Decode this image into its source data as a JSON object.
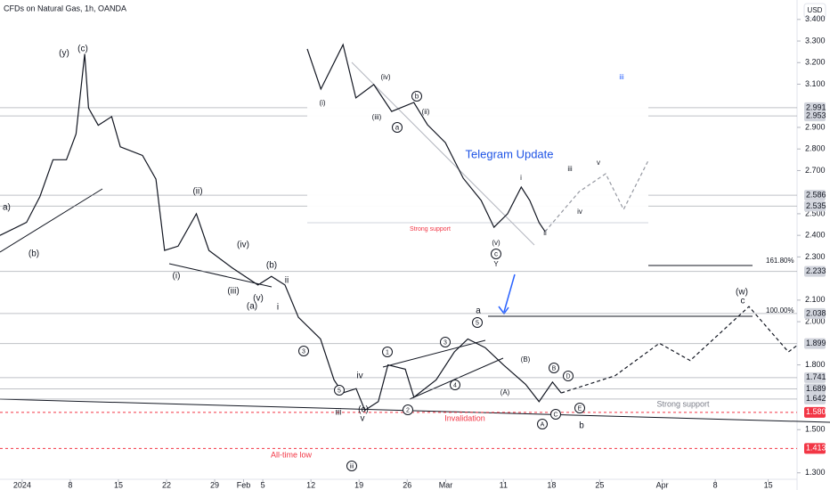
{
  "chart_data": [
    {
      "type": "line",
      "title": "CFDs on Natural Gas, 1h, OANDA",
      "currency": "USD",
      "xlim": [
        -2.3,
        80.5
      ],
      "ylim": [
        1.27,
        3.49
      ],
      "xticks": [
        {
          "value": 0,
          "label": "2024"
        },
        {
          "value": 5,
          "label": "8"
        },
        {
          "value": 10,
          "label": "15"
        },
        {
          "value": 15,
          "label": "22"
        },
        {
          "value": 20,
          "label": "29"
        },
        {
          "value": 23,
          "label": "Feb"
        },
        {
          "value": 25,
          "label": "5"
        },
        {
          "value": 30,
          "label": "12"
        },
        {
          "value": 35,
          "label": "19"
        },
        {
          "value": 40,
          "label": "26"
        },
        {
          "value": 44,
          "label": "Mar"
        },
        {
          "value": 50,
          "label": "11"
        },
        {
          "value": 55,
          "label": "18"
        },
        {
          "value": 60,
          "label": "25"
        },
        {
          "value": 66.5,
          "label": "Apr"
        },
        {
          "value": 72,
          "label": "8"
        },
        {
          "value": 77.5,
          "label": "15"
        }
      ],
      "yticks": [
        {
          "value": 3.4,
          "label": "3.400"
        },
        {
          "value": 3.3,
          "label": "3.300"
        },
        {
          "value": 3.2,
          "label": "3.200"
        },
        {
          "value": 3.1,
          "label": "3.100"
        },
        {
          "value": 2.9,
          "label": "2.900"
        },
        {
          "value": 2.8,
          "label": "2.800"
        },
        {
          "value": 2.7,
          "label": "2.700"
        },
        {
          "value": 2.5,
          "label": "2.500"
        },
        {
          "value": 2.4,
          "label": "2.400"
        },
        {
          "value": 2.3,
          "label": "2.300"
        },
        {
          "value": 2.1,
          "label": "2.100"
        },
        {
          "value": 2.0,
          "label": "2.000"
        },
        {
          "value": 1.8,
          "label": "1.800"
        },
        {
          "value": 1.5,
          "label": "1.500"
        },
        {
          "value": 1.3,
          "label": "1.300"
        }
      ],
      "levels": {
        "values": [
          2.991,
          2.953,
          2.586,
          2.535,
          2.233,
          2.038,
          1.899,
          1.741,
          1.689,
          1.642,
          1.58,
          1.413
        ],
        "value_labels": [
          "2.991",
          "2.953",
          "2.586",
          "2.535",
          "2.233",
          "2.038",
          "1.899",
          "1.741",
          "1.689",
          "1.642",
          "1.580",
          "1.413"
        ],
        "colors": [
          "#9598a1",
          "#9598a1",
          "#9598a1",
          "#9598a1",
          "#9598a1",
          "#9598a1",
          "#9598a1",
          "#9598a1",
          "#9598a1",
          "#9598a1",
          "#f23645",
          "#f23645"
        ]
      },
      "series": [
        {
          "color": "#131722",
          "dashed": false,
          "x": [
            -2.3,
            0.46,
            1.85,
            3.2,
            4.6,
            5.6,
            6.5,
            6.9,
            7.9,
            9.3,
            10.2,
            12.5,
            13.9,
            14.8,
            16.2,
            18.1,
            19.4,
            21.8,
            24.5,
            25.9,
            27.3,
            28.7,
            31,
            32.4,
            33.3,
            34.7,
            35.6,
            37,
            38,
            39.8,
            40.7,
            43,
            44.9,
            46.3,
            48.1,
            50,
            52.3,
            53.7,
            55.1,
            56
          ],
          "values": [
            2.4,
            2.46,
            2.58,
            2.75,
            2.75,
            2.87,
            3.24,
            2.99,
            2.91,
            2.95,
            2.81,
            2.77,
            2.66,
            2.33,
            2.35,
            2.5,
            2.33,
            2.25,
            2.17,
            2.21,
            2.17,
            2.02,
            1.92,
            1.73,
            1.67,
            1.69,
            1.59,
            1.63,
            1.8,
            1.78,
            1.65,
            1.73,
            1.86,
            1.92,
            1.88,
            1.8,
            1.71,
            1.63,
            1.72,
            1.67
          ]
        },
        {
          "color": "#131722",
          "dashed": true,
          "x": [
            56,
            58.8,
            61.6,
            66.2,
            69.4,
            75.5,
            79.6,
            80.5
          ],
          "values": [
            1.67,
            1.71,
            1.75,
            1.9,
            1.82,
            2.07,
            1.86,
            1.89
          ]
        }
      ],
      "annotations": [
        "(y)",
        "(c)",
        "a)",
        "(b)",
        "(ii)",
        "(iv)",
        "(b)",
        "(i)",
        "(iii)",
        "(v)",
        "(a)",
        "ii",
        "i",
        "iv",
        "(c)",
        "iii",
        "v",
        "a",
        "(B)",
        "(A)",
        "b",
        "(w)",
        "c",
        "161.80%",
        "100.00%",
        "Strong support",
        "Invalidation",
        "All-time low"
      ],
      "circled": [
        "3",
        "5",
        "1",
        "2",
        "3",
        "4",
        "5",
        "B",
        "D",
        "C",
        "E",
        "A",
        "iii"
      ]
    },
    {
      "type": "line",
      "title": "Telegram Update",
      "xlim": [
        0,
        40
      ],
      "ylim": [
        0,
        100
      ],
      "series": [
        {
          "color": "#131722",
          "dashed": false,
          "x": [
            0,
            1.6,
            4.2,
            5.7,
            7.8,
            9.9,
            12.5,
            14.1,
            16.2,
            18.3,
            20.4,
            21.9,
            23.5,
            25.1,
            26.1,
            27.2,
            27.9
          ],
          "values": [
            95.5,
            75,
            97.7,
            70.5,
            77.3,
            63.6,
            68.2,
            56.8,
            47.7,
            29.5,
            18.2,
            4.5,
            11.4,
            25,
            18.2,
            6.8,
            2.3
          ]
        },
        {
          "color": "#9598a1",
          "dashed": true,
          "x": [
            27.9,
            31.9,
            35,
            37.1,
            40
          ],
          "values": [
            2.3,
            22.7,
            31.8,
            13.6,
            38.6
          ]
        }
      ],
      "annotations": [
        "Strong support",
        "(i)",
        "(iii)",
        "(iv)",
        "(ii)",
        "(v)",
        "Y",
        "i",
        "iii",
        "iv",
        "v",
        "ii",
        "iii"
      ],
      "circled": [
        "b",
        "a",
        "c"
      ]
    }
  ]
}
